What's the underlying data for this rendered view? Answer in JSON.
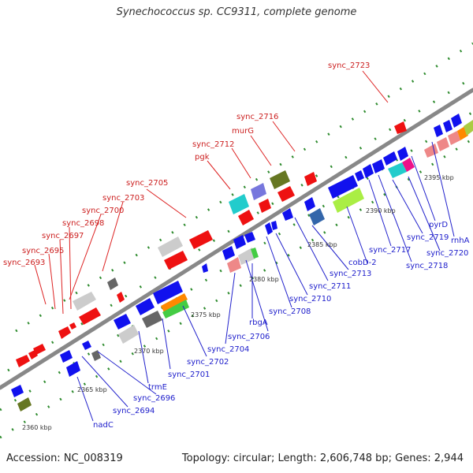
{
  "title": "Synechococcus sp. CC9311, complete genome",
  "footer": {
    "accession": "Accession: NC_008319",
    "stats": "Topology: circular; Length: 2,606,748 bp; Genes: 2,944"
  },
  "colors": {
    "backbone": "#8a8a8a",
    "ruler_dots": "#2e8b2e",
    "forward_label": "#cc2020",
    "reverse_label": "#2020cc"
  },
  "scale_labels": [
    "2360 kbp",
    "2365 kbp",
    "2370 kbp",
    "2375 kbp",
    "2380 kbp",
    "2385 kbp",
    "2390 kbp",
    "2395 kbp"
  ],
  "forward_gene_labels": [
    "sync_2693",
    "sync_2695",
    "sync_2697",
    "sync_2698",
    "sync_2700",
    "sync_2703",
    "sync_2705",
    "pgk",
    "sync_2712",
    "murG",
    "sync_2716",
    "sync_2723"
  ],
  "reverse_gene_labels": [
    "nadC",
    "sync_2694",
    "sync_2696",
    "trmE",
    "sync_2701",
    "sync_2702",
    "sync_2704",
    "rbgA",
    "sync_2706",
    "sync_2708",
    "sync_2710",
    "sync_2711",
    "sync_2713",
    "cobD-2",
    "sync_2717",
    "sync_2718",
    "sync_2719",
    "sync_2720",
    "pyrD",
    "rnhA"
  ]
}
